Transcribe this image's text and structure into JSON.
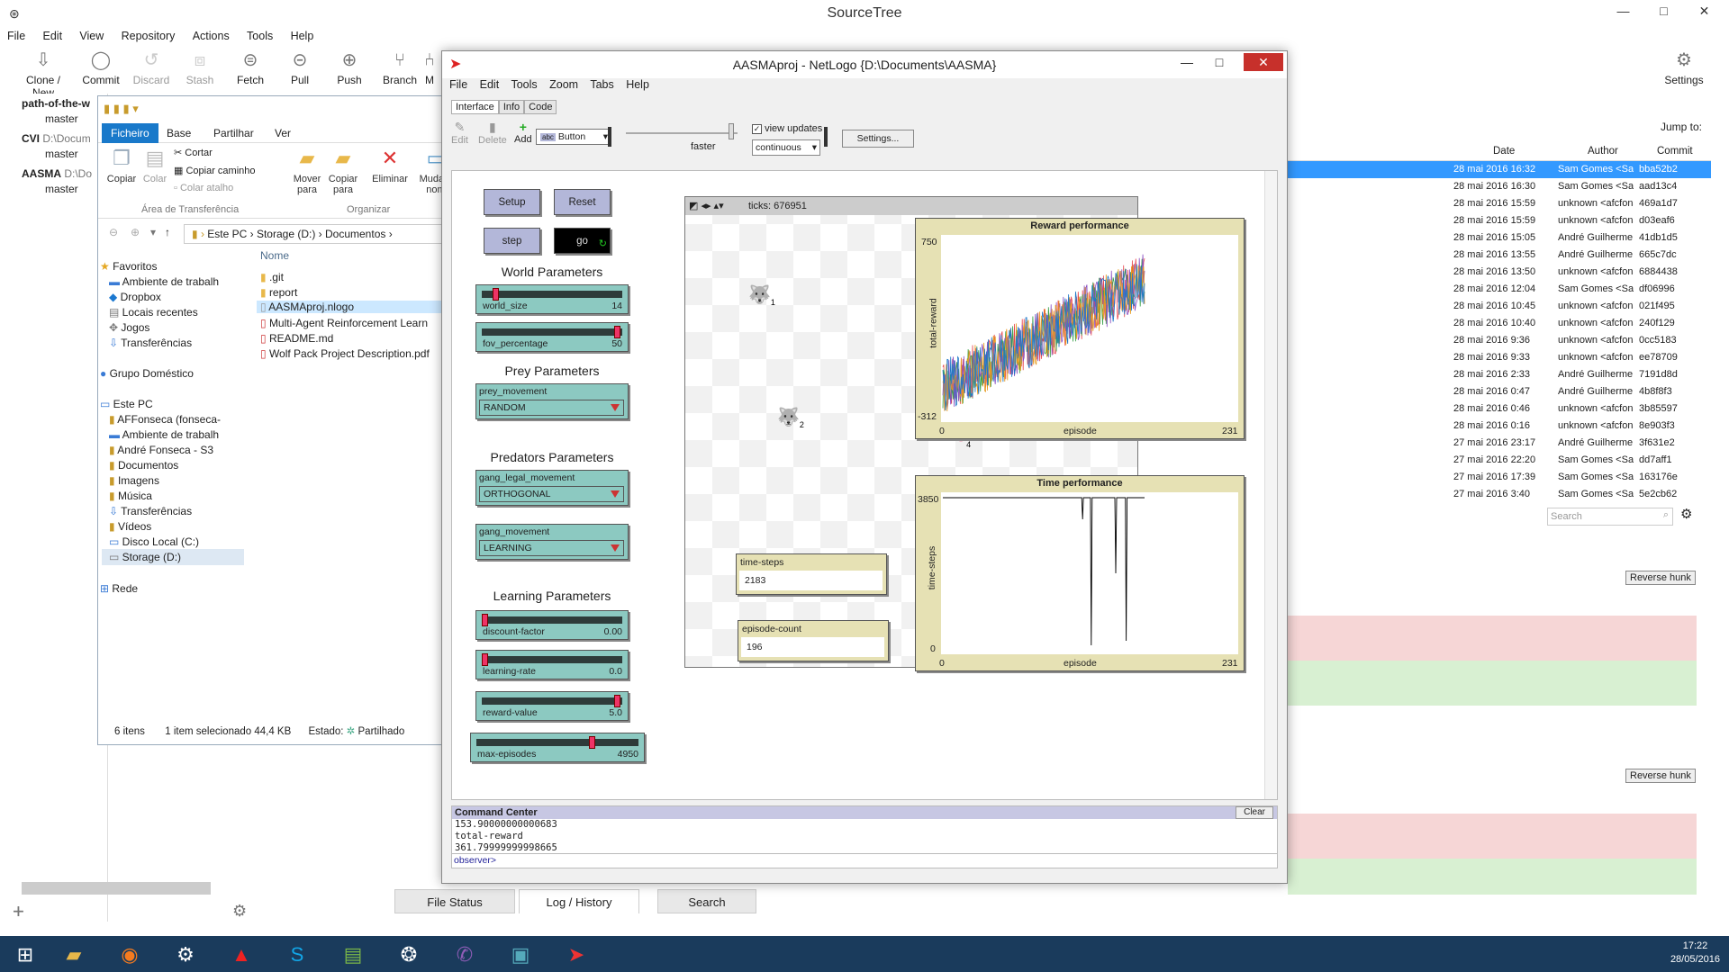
{
  "sourcetree": {
    "title": "SourceTree",
    "menu": [
      "File",
      "Edit",
      "View",
      "Repository",
      "Actions",
      "Tools",
      "Help"
    ],
    "toolbar": {
      "clone": "Clone / New",
      "commit": "Commit",
      "discard": "Discard",
      "stash": "Stash",
      "fetch": "Fetch",
      "pull": "Pull",
      "push": "Push",
      "branch": "Branch",
      "merge": "M",
      "settings": "Settings"
    },
    "repos": [
      {
        "name": "path-of-the-w",
        "path": "",
        "branch": "master"
      },
      {
        "name": "CVI",
        "path": "D:\\Docum",
        "branch": "master"
      },
      {
        "name": "AASMA",
        "path": "D:\\Do",
        "branch": "master"
      }
    ],
    "jump_to": "Jump to:",
    "commit_headers": {
      "date": "Date",
      "author": "Author",
      "commit": "Commit"
    },
    "commits": [
      {
        "date": "28 mai 2016 16:32",
        "author": "Sam Gomes <Sam",
        "hash": "bba52b2"
      },
      {
        "date": "28 mai 2016 16:30",
        "author": "Sam Gomes <Sam",
        "hash": "aad13c4"
      },
      {
        "date": "28 mai 2016 15:59",
        "author": "unknown <afcfons",
        "hash": "469a1d7"
      },
      {
        "date": "28 mai 2016 15:59",
        "author": "unknown <afcfons",
        "hash": "d03eaf6"
      },
      {
        "date": "28 mai 2016 15:05",
        "author": "André Guilherme C",
        "hash": "41db1d5"
      },
      {
        "date": "28 mai 2016 13:55",
        "author": "André Guilherme C",
        "hash": "665c7dc"
      },
      {
        "date": "28 mai 2016 13:50",
        "author": "unknown <afcfons",
        "hash": "6884438"
      },
      {
        "date": "28 mai 2016 12:04",
        "author": "Sam Gomes <Sam",
        "hash": "df06996"
      },
      {
        "date": "28 mai 2016 10:45",
        "author": "unknown <afcfons",
        "hash": "021f495"
      },
      {
        "date": "28 mai 2016 10:40",
        "author": "unknown <afcfons",
        "hash": "240f129"
      },
      {
        "date": "28 mai 2016 9:36",
        "author": "unknown <afcfons",
        "hash": "0cc5183"
      },
      {
        "date": "28 mai 2016 9:33",
        "author": "unknown <afcfons",
        "hash": "ee78709"
      },
      {
        "date": "28 mai 2016 2:33",
        "author": "André Guilherme C",
        "hash": "7191d8d"
      },
      {
        "date": "28 mai 2016 0:47",
        "author": "André Guilherme C",
        "hash": "4b8f8f3"
      },
      {
        "date": "28 mai 2016 0:46",
        "author": "unknown <afcfons",
        "hash": "3b85597"
      },
      {
        "date": "28 mai 2016 0:16",
        "author": "unknown <afcfons",
        "hash": "8e903f3"
      },
      {
        "date": "27 mai 2016 23:17",
        "author": "André Guilherme C",
        "hash": "3f631e2"
      },
      {
        "date": "27 mai 2016 22:20",
        "author": "Sam Gomes <Sam",
        "hash": "dd7aff1"
      },
      {
        "date": "27 mai 2016 17:39",
        "author": "Sam Gomes <Sam",
        "hash": "163176e"
      },
      {
        "date": "27 mai 2016 3:40",
        "author": "Sam Gomes <Sam",
        "hash": "5e2cb62"
      }
    ],
    "search_placeholder": "Search",
    "reverse_hunk": "Reverse hunk",
    "bottom_tabs": [
      "File Status",
      "Log / History",
      "Search"
    ]
  },
  "explorer": {
    "ribbon_tabs": [
      "Ficheiro",
      "Base",
      "Partilhar",
      "Ver"
    ],
    "copy": "Copiar",
    "paste": "Colar",
    "cut": "Cortar",
    "copy_path": "Copiar caminho",
    "paste_shortcut": "Colar atalho",
    "move_to": "Mover para",
    "copy_to": "Copiar para",
    "delete": "Eliminar",
    "rename": "Muda o nom",
    "group_clipboard": "Área de Transferência",
    "group_organize": "Organizar",
    "address": [
      "Este PC",
      "Storage (D:)",
      "Documentos"
    ],
    "name_header": "Nome",
    "nav": [
      "Favoritos",
      "Ambiente de trabalh",
      "Dropbox",
      "Locais recentes",
      "Jogos",
      "Transferências",
      "Grupo Doméstico",
      "Este PC",
      "AFFonseca (fonseca-",
      "Ambiente de trabalh",
      "André Fonseca - S3",
      "Documentos",
      "Imagens",
      "Música",
      "Transferências",
      "Vídeos",
      "Disco Local (C:)",
      "Storage (D:)",
      "Rede"
    ],
    "files": [
      ".git",
      "report",
      "AASMAproj.nlogo",
      "Multi-Agent Reinforcement Learn",
      "README.md",
      "Wolf Pack Project Description.pdf"
    ],
    "status": {
      "count": "6 itens",
      "selected": "1 item selecionado 44,4 KB",
      "state": "Estado:",
      "shared": "Partilhado"
    }
  },
  "netlogo": {
    "title": "AASMAproj - NetLogo {D:\\Documents\\AASMA}",
    "menu": [
      "File",
      "Edit",
      "Tools",
      "Zoom",
      "Tabs",
      "Help"
    ],
    "tabs": [
      "Interface",
      "Info",
      "Code"
    ],
    "toolbar": {
      "edit": "Edit",
      "delete": "Delete",
      "add": "Add",
      "widget": "Button",
      "faster": "faster",
      "view_updates": "view updates",
      "update_mode": "continuous",
      "settings": "Settings..."
    },
    "buttons": {
      "setup": "Setup",
      "reset": "Reset",
      "step": "step",
      "go": "go"
    },
    "sections": {
      "world": "World Parameters",
      "prey": "Prey Parameters",
      "predators": "Predators Parameters",
      "learning": "Learning Parameters"
    },
    "sliders": [
      {
        "name": "world_size",
        "value": "14",
        "fraction": 0.08
      },
      {
        "name": "fov_percentage",
        "value": "50",
        "fraction": 0.98
      },
      {
        "name": "discount-factor",
        "value": "0.00",
        "fraction": 0.0
      },
      {
        "name": "learning-rate",
        "value": "0.0",
        "fraction": 0.0
      },
      {
        "name": "reward-value",
        "value": "5.0",
        "fraction": 0.98
      },
      {
        "name": "max-episodes",
        "value": "4950",
        "fraction": 0.72
      }
    ],
    "choosers": [
      {
        "name": "prey_movement",
        "value": "RANDOM"
      },
      {
        "name": "gang_legal_movement",
        "value": "ORTHOGONAL"
      },
      {
        "name": "gang_movement",
        "value": "LEARNING"
      }
    ],
    "ticks": "ticks: 676951",
    "agent_labels": [
      "1",
      "2",
      "4"
    ],
    "monitors": [
      {
        "name": "time-steps",
        "value": "2183"
      },
      {
        "name": "episode-count",
        "value": "196"
      }
    ],
    "plots": {
      "reward": {
        "title": "Reward performance",
        "ylabel": "total-reward",
        "xlabel": "episode",
        "ymax": "750",
        "ymin": "-312",
        "xmin": "0",
        "xmax": "231"
      },
      "time": {
        "title": "Time performance",
        "ylabel": "time-steps",
        "xlabel": "episode",
        "ymax": "3850",
        "ymin": "0",
        "xmin": "0",
        "xmax": "231"
      }
    },
    "command_center": {
      "title": "Command Center",
      "clear": "Clear",
      "output": [
        "153.90000000000683",
        "total-reward",
        "361.79999999998665"
      ],
      "prompt": "observer>"
    }
  },
  "taskbar": {
    "time": "17:22",
    "date": "28/05/2016"
  }
}
